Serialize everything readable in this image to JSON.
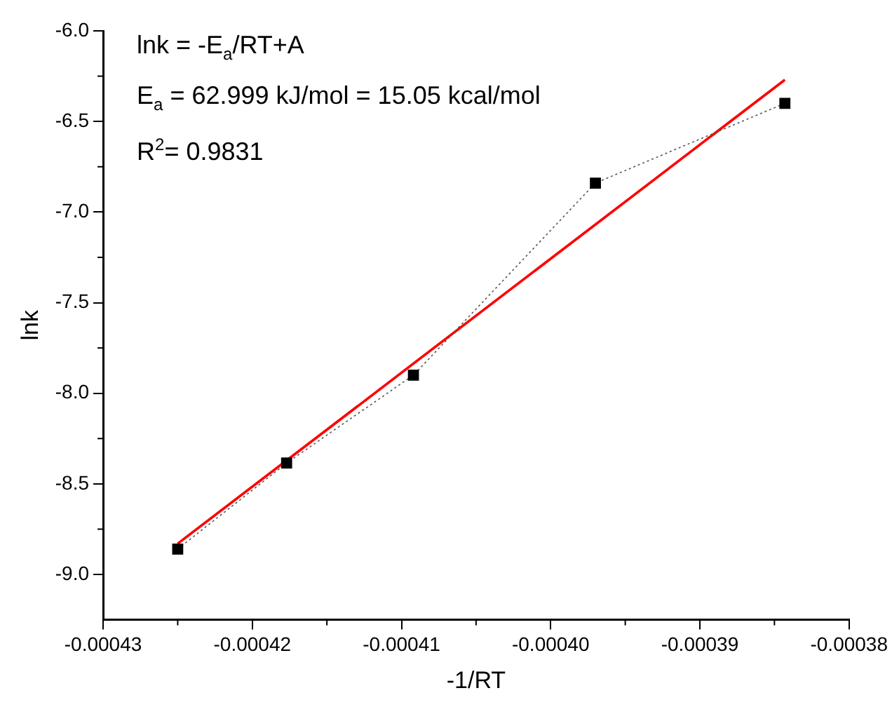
{
  "chart_data": {
    "type": "line",
    "xlabel": "-1/RT",
    "ylabel": "lnk",
    "annotations": [
      "lnk = -E$_{a}$/RT+A",
      "E$_{a}$ = 62.999 kJ/mol = 15.05 kcal/mol",
      "R$^{2}$= 0.9831"
    ],
    "xlim": [
      -0.00043,
      -0.00038
    ],
    "xticks": [
      -0.00043,
      -0.00042,
      -0.00041,
      {
        "value": -0.0004,
        "label": "-0.00040"
      },
      -0.00039,
      -0.00038
    ],
    "ylim": [
      -9.25,
      -6.0
    ],
    "yticks": [
      {
        "value": -9.0,
        "label": "-9.0"
      },
      -8.5,
      {
        "value": -8.0,
        "label": "-8.0"
      },
      -7.5,
      {
        "value": -7.0,
        "label": "-7.0"
      },
      -6.5,
      {
        "value": -6.0,
        "label": "-6.0"
      }
    ],
    "grid": false,
    "legend": false,
    "series": [
      {
        "color": "#000000",
        "marker": "square",
        "line_style": "dotted",
        "x": [
          -0.000425,
          -0.0004177,
          -0.0004092,
          -0.000397,
          -0.0003843
        ],
        "values": [
          -8.86,
          -8.385,
          -7.9,
          -6.84,
          -6.4
        ]
      },
      {
        "color": "#ff0000",
        "marker": "none",
        "line_style": "solid",
        "x": [
          -0.000425,
          -0.0003843
        ],
        "values": [
          -8.83,
          -6.27
        ]
      }
    ]
  }
}
